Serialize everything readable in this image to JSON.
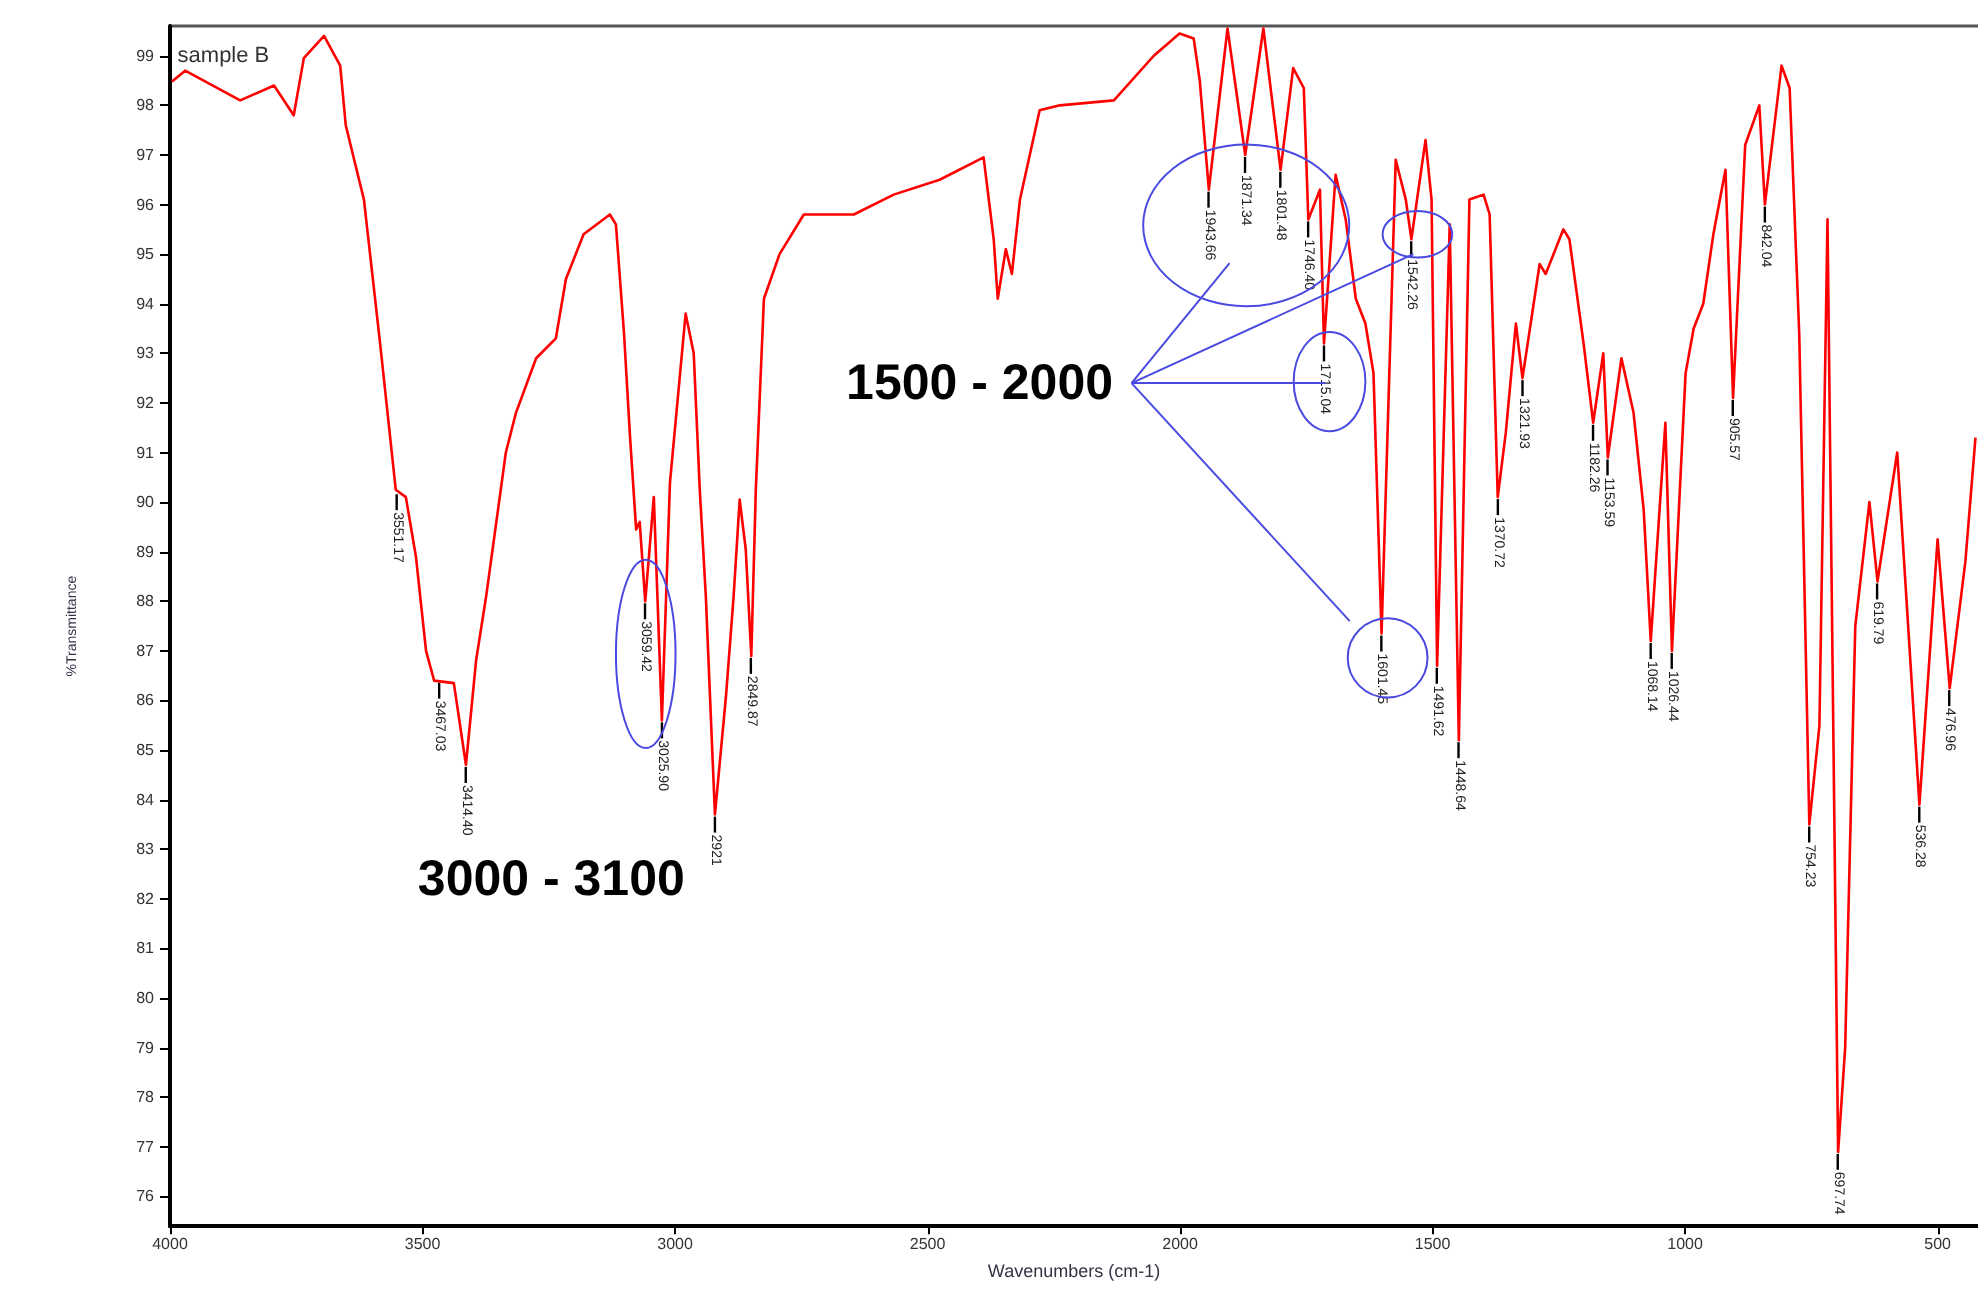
{
  "chart_data": {
    "type": "line",
    "xlabel": "Wavenumbers (cm-1)",
    "ylabel": "%Transmittance",
    "color": "#ff0000",
    "xlim": [
      4000,
      420
    ],
    "xticks": [
      4000,
      3500,
      3000,
      2500,
      2000,
      1500,
      1000,
      500
    ],
    "ylim": [
      75.4,
      99.6
    ],
    "yticks": [
      76,
      77,
      78,
      79,
      80,
      81,
      82,
      83,
      84,
      85,
      86,
      87,
      88,
      89,
      90,
      91,
      92,
      93,
      94,
      95,
      96,
      97,
      98,
      99
    ],
    "x": [
      3996,
      3970,
      3861,
      3794,
      3755,
      3735,
      3695,
      3663,
      3652,
      3616,
      3584,
      3553,
      3533,
      3513,
      3493,
      3477,
      3438,
      3414,
      3394,
      3374,
      3335,
      3315,
      3275,
      3236,
      3216,
      3181,
      3129,
      3117,
      3101,
      3089,
      3077,
      3070,
      3059,
      3042,
      3026,
      3010,
      2979,
      2963,
      2951,
      2939,
      2921,
      2899,
      2884,
      2872,
      2860,
      2849,
      2840,
      2824,
      2793,
      2745,
      2646,
      2567,
      2476,
      2389,
      2369,
      2361,
      2345,
      2333,
      2317,
      2278,
      2238,
      2131,
      2052,
      2001,
      1973,
      1961,
      1943,
      1906,
      1871,
      1835,
      1801,
      1776,
      1755,
      1746,
      1723,
      1715,
      1692,
      1672,
      1652,
      1633,
      1617,
      1601,
      1573,
      1553,
      1542,
      1514,
      1502,
      1491,
      1466,
      1448,
      1427,
      1399,
      1387,
      1371,
      1355,
      1335,
      1322,
      1288,
      1276,
      1241,
      1229,
      1201,
      1182,
      1162,
      1153,
      1126,
      1102,
      1082,
      1068,
      1039,
      1026,
      999,
      983,
      964,
      944,
      920,
      905,
      881,
      853,
      842,
      809,
      793,
      774,
      754,
      734,
      718,
      697,
      683,
      663,
      635,
      619,
      580,
      536,
      500,
      476,
      445,
      425
    ],
    "values": [
      98.48,
      98.7,
      98.1,
      98.4,
      97.8,
      98.95,
      99.4,
      98.8,
      97.6,
      96.1,
      93.2,
      90.25,
      90.1,
      88.9,
      87.0,
      86.4,
      86.35,
      84.7,
      86.8,
      88.1,
      91.0,
      91.8,
      92.9,
      93.3,
      94.5,
      95.4,
      95.8,
      95.6,
      93.4,
      91.3,
      89.45,
      89.6,
      88.0,
      90.1,
      85.6,
      90.4,
      93.8,
      93.0,
      90.25,
      88.1,
      83.7,
      86.1,
      88.1,
      90.05,
      89.05,
      86.9,
      90.25,
      94.1,
      95.0,
      95.8,
      95.8,
      96.2,
      96.5,
      96.95,
      95.3,
      94.1,
      95.1,
      94.6,
      96.1,
      97.9,
      98.0,
      98.1,
      99.0,
      99.45,
      99.35,
      98.5,
      96.3,
      99.55,
      97.0,
      99.55,
      96.7,
      98.75,
      98.35,
      95.7,
      96.3,
      93.2,
      96.6,
      95.7,
      94.1,
      93.6,
      92.6,
      87.35,
      96.9,
      96.1,
      95.3,
      97.3,
      96.1,
      86.7,
      95.6,
      85.2,
      96.1,
      96.2,
      95.8,
      90.1,
      91.4,
      93.6,
      92.5,
      94.8,
      94.6,
      95.5,
      95.3,
      93.2,
      91.6,
      93.0,
      90.9,
      92.9,
      91.8,
      89.85,
      87.2,
      91.6,
      87.0,
      92.6,
      93.5,
      94.0,
      95.4,
      96.7,
      92.1,
      97.2,
      98.0,
      96.0,
      98.8,
      98.35,
      93.4,
      83.5,
      85.5,
      95.7,
      76.9,
      79.0,
      87.5,
      90.0,
      88.4,
      91.0,
      83.9,
      89.25,
      86.25,
      88.8,
      91.3
    ],
    "annotations": [
      "sample B",
      "3000 - 3100",
      "1500 - 2000",
      {
        "text": "3551.17",
        "x": 3551.17,
        "y": 90.2
      },
      {
        "text": "3467.03",
        "x": 3467.03,
        "y": 86.4
      },
      {
        "text": "3414.40",
        "x": 3414.4,
        "y": 84.7
      },
      {
        "text": "3059.42",
        "x": 3059.42,
        "y": 88.0
      },
      {
        "text": "3025.90",
        "x": 3025.9,
        "y": 85.6
      },
      {
        "text": "2921",
        "x": 2921,
        "y": 83.7
      },
      {
        "text": "2849.87",
        "x": 2849.87,
        "y": 86.9
      },
      {
        "text": "1943.66",
        "x": 1943.66,
        "y": 96.3
      },
      {
        "text": "1871.34",
        "x": 1871.34,
        "y": 97.0
      },
      {
        "text": "1801.48",
        "x": 1801.48,
        "y": 96.7
      },
      {
        "text": "1746.40",
        "x": 1746.4,
        "y": 95.7
      },
      {
        "text": "1715.04",
        "x": 1715.04,
        "y": 93.2
      },
      {
        "text": "1542.26",
        "x": 1542.26,
        "y": 95.3
      },
      {
        "text": "1601.45",
        "x": 1601.45,
        "y": 87.35
      },
      {
        "text": "1491.62",
        "x": 1491.62,
        "y": 86.7
      },
      {
        "text": "1448.64",
        "x": 1448.64,
        "y": 85.2
      },
      {
        "text": "1370.72",
        "x": 1370.72,
        "y": 90.1
      },
      {
        "text": "1321.93",
        "x": 1321.93,
        "y": 92.5
      },
      {
        "text": "1182.26",
        "x": 1182.26,
        "y": 91.6
      },
      {
        "text": "1153.59",
        "x": 1153.59,
        "y": 90.9
      },
      {
        "text": "1068.14",
        "x": 1068.14,
        "y": 87.2
      },
      {
        "text": "1026.44",
        "x": 1026.44,
        "y": 87.0
      },
      {
        "text": "905.57",
        "x": 905.57,
        "y": 92.1
      },
      {
        "text": "842.04",
        "x": 842.04,
        "y": 96.0
      },
      {
        "text": "754.23",
        "x": 754.23,
        "y": 83.5
      },
      {
        "text": "697.74",
        "x": 697.74,
        "y": 76.9
      },
      {
        "text": "619.79",
        "x": 619.79,
        "y": 88.4
      },
      {
        "text": "536.28",
        "x": 536.28,
        "y": 83.9
      },
      {
        "text": "476.96",
        "x": 476.96,
        "y": 86.25
      }
    ]
  }
}
